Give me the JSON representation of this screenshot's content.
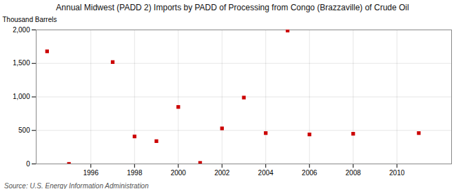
{
  "chart_data": {
    "type": "scatter",
    "title": "Annual Midwest (PADD 2) Imports by PADD of Processing from Congo (Brazzaville) of Crude Oil",
    "ylabel": "Thousand Barrels",
    "source": "Source: U.S. Energy Information Administration",
    "x": [
      1994,
      1995,
      1997,
      1998,
      1999,
      2000,
      2001,
      2002,
      2003,
      2004,
      2005,
      2006,
      2008,
      2011
    ],
    "values": [
      1680,
      0,
      1520,
      410,
      340,
      850,
      15,
      530,
      990,
      460,
      1990,
      440,
      450,
      460
    ],
    "color": "#cc0000",
    "marker": "square",
    "xlim": [
      1993.5,
      2012.5
    ],
    "xticks": [
      1996,
      1998,
      2000,
      2002,
      2004,
      2006,
      2008,
      2010
    ],
    "ylim": [
      0,
      2000
    ],
    "yticks": [
      0,
      500,
      {
        "value": 1000,
        "label": "1,000"
      },
      {
        "value": 1500,
        "label": "1,500"
      },
      {
        "value": 2000,
        "label": "2,000"
      }
    ],
    "grid": true
  }
}
